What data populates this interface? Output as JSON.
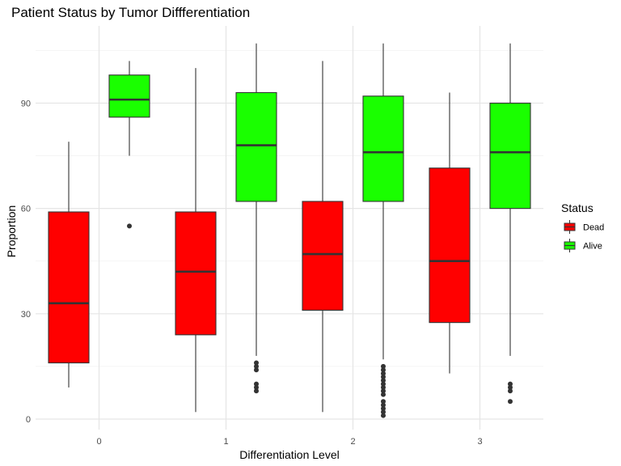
{
  "chart_data": {
    "type": "boxplot",
    "title": "Patient Status by Tumor Diffferentiation",
    "xlabel": "Differentiation Level",
    "ylabel": "Proportion",
    "categories": [
      "0",
      "1",
      "2",
      "3"
    ],
    "ylim": [
      -3,
      112
    ],
    "yticks": [
      0,
      30,
      60,
      90
    ],
    "grid": true,
    "legend": {
      "title": "Status",
      "position": "right"
    },
    "series": [
      {
        "name": "Dead",
        "color": "#ff0000",
        "boxes": [
          {
            "lower": 9,
            "q1": 16,
            "median": 33,
            "q3": 59,
            "upper": 79,
            "outliers": []
          },
          {
            "lower": 2,
            "q1": 24,
            "median": 42,
            "q3": 59,
            "upper": 100,
            "outliers": []
          },
          {
            "lower": 2,
            "q1": 31,
            "median": 47,
            "q3": 62,
            "upper": 102,
            "outliers": []
          },
          {
            "lower": 13,
            "q1": 27.5,
            "median": 45,
            "q3": 71.5,
            "upper": 93,
            "outliers": []
          }
        ]
      },
      {
        "name": "Alive",
        "color": "#1aff00",
        "boxes": [
          {
            "lower": 75,
            "q1": 86,
            "median": 91,
            "q3": 98,
            "upper": 102,
            "outliers": [
              55
            ]
          },
          {
            "lower": 18,
            "q1": 62,
            "median": 78,
            "q3": 93,
            "upper": 107,
            "outliers": [
              8,
              9,
              10,
              14,
              15,
              16
            ]
          },
          {
            "lower": 17,
            "q1": 62,
            "median": 76,
            "q3": 92,
            "upper": 107,
            "outliers": [
              1,
              2,
              3,
              4,
              5,
              7,
              8,
              9,
              10,
              11,
              12,
              13,
              14,
              15
            ]
          },
          {
            "lower": 18,
            "q1": 60,
            "median": 76,
            "q3": 90,
            "upper": 107,
            "outliers": [
              5,
              8,
              9,
              10
            ]
          }
        ]
      }
    ]
  }
}
